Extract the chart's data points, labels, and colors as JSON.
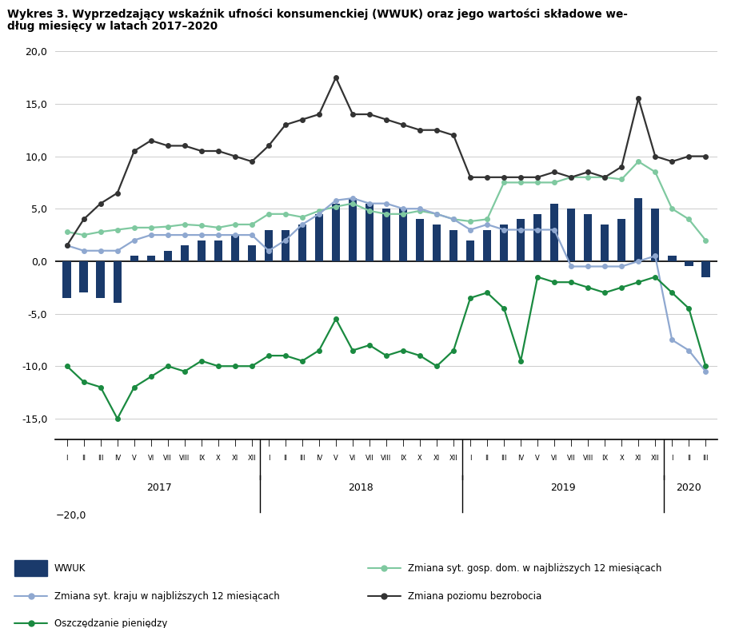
{
  "title_line1": "Wykres 3. Wyprzedzający wskaźnik ufności konsumenckiej (WWUK) oraz jego wartości składowe we-",
  "title_line2": "dług miesięcy w latach 2017–2020",
  "months_labels": [
    "I",
    "II",
    "III",
    "IV",
    "V",
    "VI",
    "VII",
    "VIII",
    "IX",
    "X",
    "XI",
    "XII",
    "I",
    "II",
    "III",
    "IV",
    "V",
    "VI",
    "VII",
    "VIII",
    "IX",
    "X",
    "XI",
    "XII",
    "I",
    "II",
    "III",
    "IV",
    "V",
    "VI",
    "VII",
    "VIII",
    "IX",
    "X",
    "XI",
    "XII",
    "I",
    "II",
    "III"
  ],
  "year_labels": [
    "2017",
    "2018",
    "2019",
    "2020"
  ],
  "ylim_main": [
    -17.0,
    21.0
  ],
  "yticks_main": [
    -15.0,
    -10.0,
    -5.0,
    0.0,
    5.0,
    10.0,
    15.0,
    20.0
  ],
  "WWUK": [
    -3.5,
    -3.0,
    -3.5,
    -4.0,
    0.5,
    0.5,
    1.0,
    1.5,
    2.0,
    2.0,
    2.5,
    1.5,
    3.0,
    3.0,
    3.5,
    4.5,
    5.5,
    6.0,
    5.5,
    5.0,
    5.0,
    4.0,
    3.5,
    3.0,
    2.0,
    3.0,
    3.5,
    4.0,
    4.5,
    5.5,
    5.0,
    4.5,
    3.5,
    4.0,
    6.0,
    5.0,
    0.5,
    -0.5,
    -1.5
  ],
  "zmiana_gosp": [
    2.8,
    2.5,
    2.8,
    3.0,
    3.2,
    3.2,
    3.3,
    3.5,
    3.4,
    3.2,
    3.5,
    3.5,
    4.5,
    4.5,
    4.2,
    4.8,
    5.2,
    5.5,
    4.8,
    4.5,
    4.5,
    4.8,
    4.5,
    4.0,
    3.8,
    4.0,
    7.5,
    7.5,
    7.5,
    7.5,
    8.0,
    8.0,
    8.0,
    7.8,
    9.5,
    8.5,
    5.0,
    4.0,
    2.0
  ],
  "zmiana_kraju": [
    1.5,
    1.0,
    1.0,
    1.0,
    2.0,
    2.5,
    2.5,
    2.5,
    2.5,
    2.5,
    2.5,
    2.5,
    1.0,
    2.0,
    3.5,
    4.5,
    5.8,
    6.0,
    5.5,
    5.5,
    5.0,
    5.0,
    4.5,
    4.0,
    3.0,
    3.5,
    3.0,
    3.0,
    3.0,
    3.0,
    -0.5,
    -0.5,
    -0.5,
    -0.5,
    0.0,
    0.5,
    -7.5,
    -8.5,
    -10.5
  ],
  "zmiana_bezrobocia": [
    1.5,
    4.0,
    5.5,
    6.5,
    10.5,
    11.5,
    11.0,
    11.0,
    10.5,
    10.5,
    10.0,
    9.5,
    11.0,
    13.0,
    13.5,
    14.0,
    17.5,
    14.0,
    14.0,
    13.5,
    13.0,
    12.5,
    12.5,
    12.0,
    8.0,
    8.0,
    8.0,
    8.0,
    8.0,
    8.5,
    8.0,
    8.5,
    8.0,
    9.0,
    15.5,
    10.0,
    9.5,
    10.0,
    10.0
  ],
  "oszczedzanie": [
    -10.0,
    -11.5,
    -12.0,
    -15.0,
    -12.0,
    -11.0,
    -10.0,
    -10.5,
    -9.5,
    -10.0,
    -10.0,
    -10.0,
    -9.0,
    -9.0,
    -9.5,
    -8.5,
    -5.5,
    -8.5,
    -8.0,
    -9.0,
    -8.5,
    -9.0,
    -10.0,
    -8.5,
    -3.5,
    -3.0,
    -4.5,
    -9.5,
    -1.5,
    -2.0,
    -2.0,
    -2.5,
    -3.0,
    -2.5,
    -2.0,
    -1.5,
    -3.0,
    -4.5,
    -10.0
  ],
  "bar_color": "#1a3a6b",
  "gosp_color": "#7fc9a0",
  "kraj_color": "#8fa8d0",
  "bezr_color": "#333333",
  "osz_color": "#1a8a40",
  "legend_labels": [
    "WWUK",
    "Zmiana syt. gosp. dom. w najbliższych 12 miesiącach",
    "Zmiana syt. kraju w najbliższych 12 miesiącach",
    "Zmiana poziomu bezrobocia",
    "Oszczędzanie pieniędzy"
  ]
}
